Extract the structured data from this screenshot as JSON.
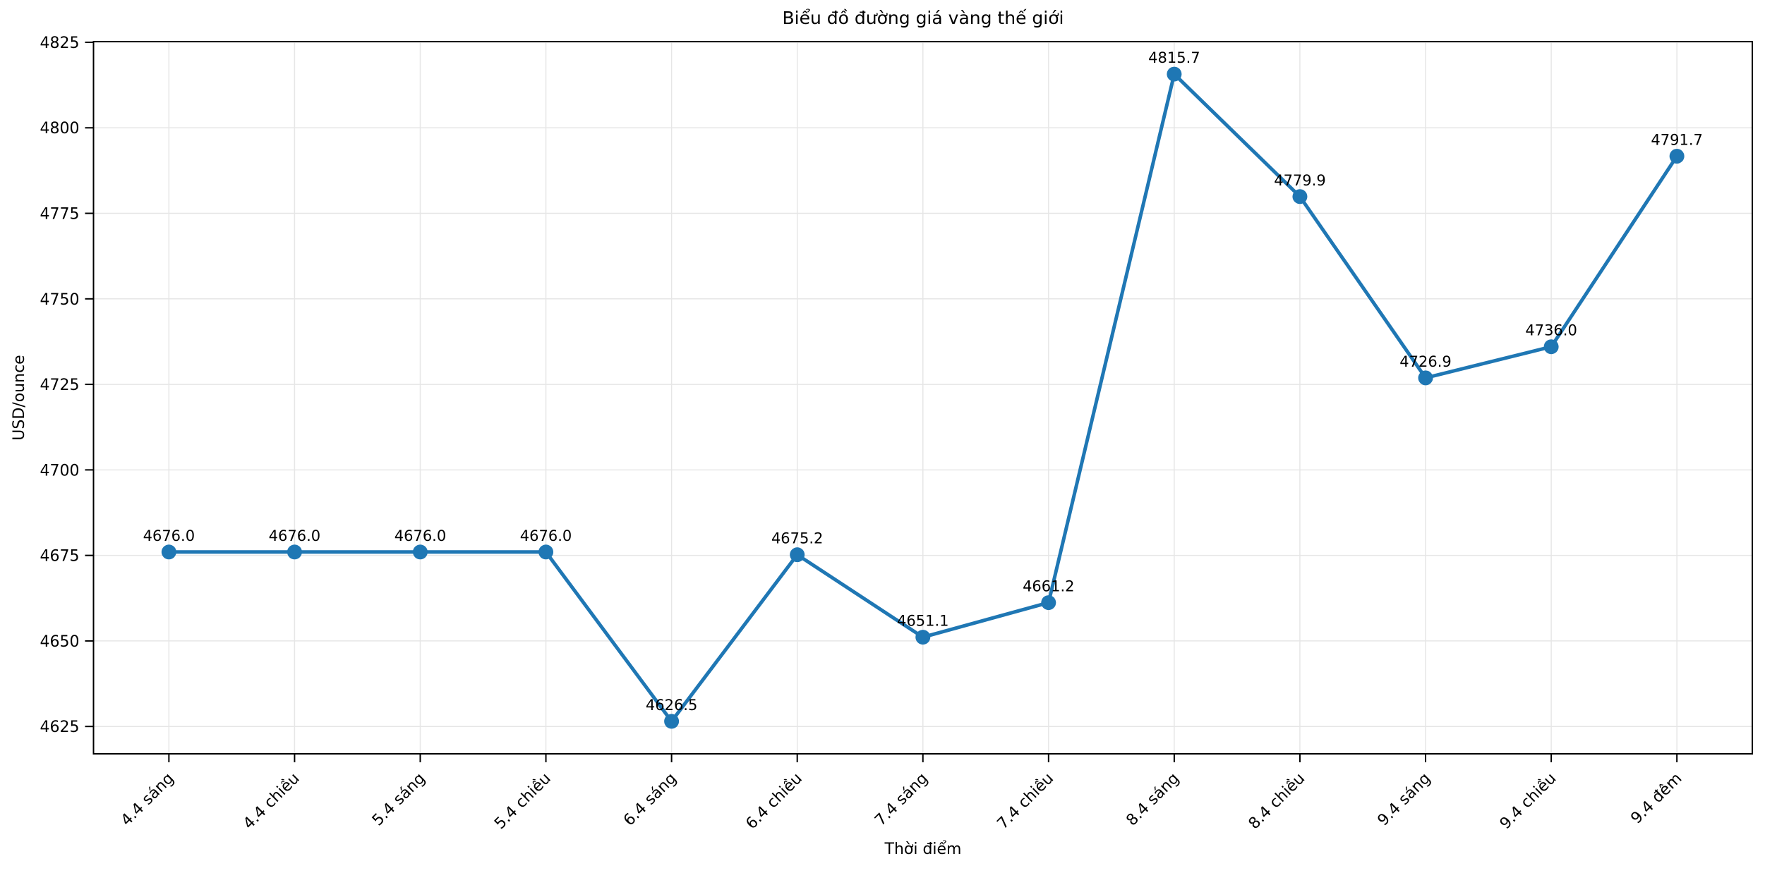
{
  "chart_data": {
    "type": "line",
    "title": "Biểu đồ đường giá vàng thế giới",
    "xlabel": "Thời điểm",
    "ylabel": "USD/ounce",
    "categories": [
      "4.4 sáng",
      "4.4 chiều",
      "5.4 sáng",
      "5.4 chiều",
      "6.4 sáng",
      "6.4 chiều",
      "7.4 sáng",
      "7.4 chiều",
      "8.4 sáng",
      "8.4 chiều",
      "9.4 sáng",
      "9.4 chiều",
      "9.4 đêm"
    ],
    "values": [
      4676.0,
      4676.0,
      4676.0,
      4676.0,
      4626.5,
      4675.2,
      4651.1,
      4661.2,
      4815.7,
      4779.9,
      4726.9,
      4736.0,
      4791.7
    ],
    "point_labels": [
      "4676.0",
      "4676.0",
      "4676.0",
      "4676.0",
      "4626.5",
      "4675.2",
      "4651.1",
      "4661.2",
      "4815.7",
      "4779.9",
      "4726.9",
      "4736.0",
      "4791.7"
    ],
    "yticks": [
      4625,
      4650,
      4675,
      4700,
      4725,
      4750,
      4775,
      4800,
      4825
    ],
    "ylim": [
      4617.0,
      4825.2
    ],
    "x_margin_units": 0.6,
    "grid": true,
    "legend": "none",
    "marker": "circle",
    "colors": {
      "line": "#1f77b4",
      "marker": "#1f77b4",
      "grid": "#e6e6e6",
      "axis": "#000000",
      "text": "#000000",
      "background": "#ffffff"
    }
  }
}
